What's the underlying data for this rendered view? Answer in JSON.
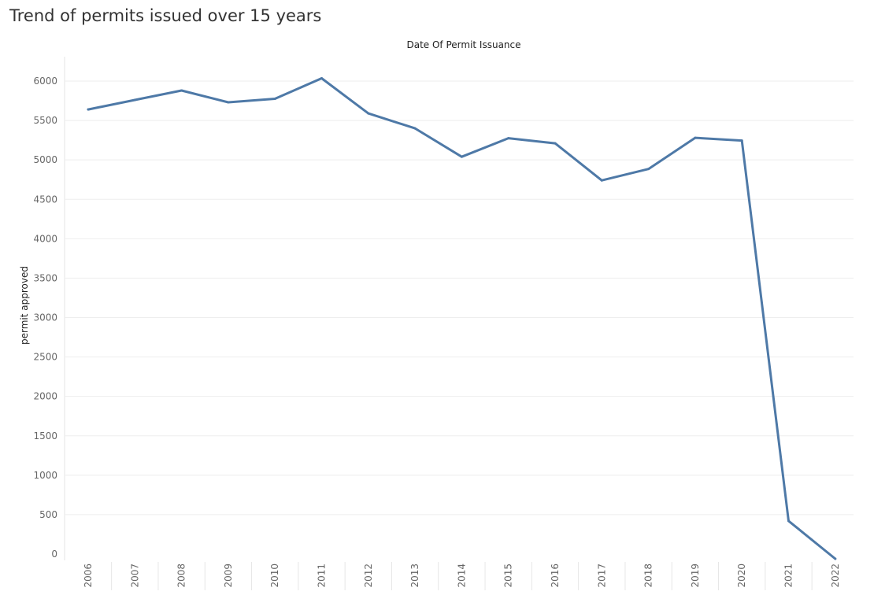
{
  "page": {
    "title": "Trend of permits issued over 15 years"
  },
  "chart_data": {
    "type": "line",
    "title": "Trend of permits issued over 15 years",
    "xlabel": "Date Of Permit Issuance",
    "ylabel": "permit approved",
    "categories": [
      "2006",
      "2007",
      "2008",
      "2009",
      "2010",
      "2011",
      "2012",
      "2013",
      "2014",
      "2015",
      "2016",
      "2017",
      "2018",
      "2019",
      "2020",
      "2021",
      "2022"
    ],
    "series": [
      {
        "values": [
          5640,
          5760,
          5880,
          5730,
          5775,
          6035,
          5590,
          5400,
          5040,
          5275,
          5210,
          4740,
          4885,
          5280,
          5245,
          420,
          -60
        ]
      }
    ],
    "ylim": [
      -60,
      6250
    ],
    "yticks": [
      0,
      500,
      1000,
      1500,
      2000,
      2500,
      3000,
      3500,
      4000,
      4500,
      5000,
      5500,
      6000
    ],
    "grid": true,
    "line_color": "#4e79a7"
  }
}
